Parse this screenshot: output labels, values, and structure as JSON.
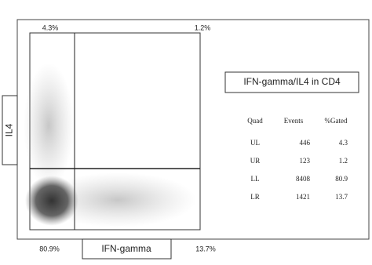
{
  "plot": {
    "quadrant_labels": {
      "ul": "4.3%",
      "ur": "1.2%",
      "ll": "80.9%",
      "lr": "13.7%"
    },
    "y_axis_label": "IL4",
    "x_axis_label": "IFN-gamma"
  },
  "legend": {
    "title": "IFN-gamma/IL4 in CD4",
    "table": {
      "header": [
        "Quad",
        "Events",
        "%Gated"
      ],
      "rows": [
        [
          "UL",
          446,
          4.3
        ],
        [
          "UR",
          123,
          1.2
        ],
        [
          "LL",
          8408,
          80.9
        ],
        [
          "LR",
          1421,
          13.7
        ]
      ]
    }
  }
}
